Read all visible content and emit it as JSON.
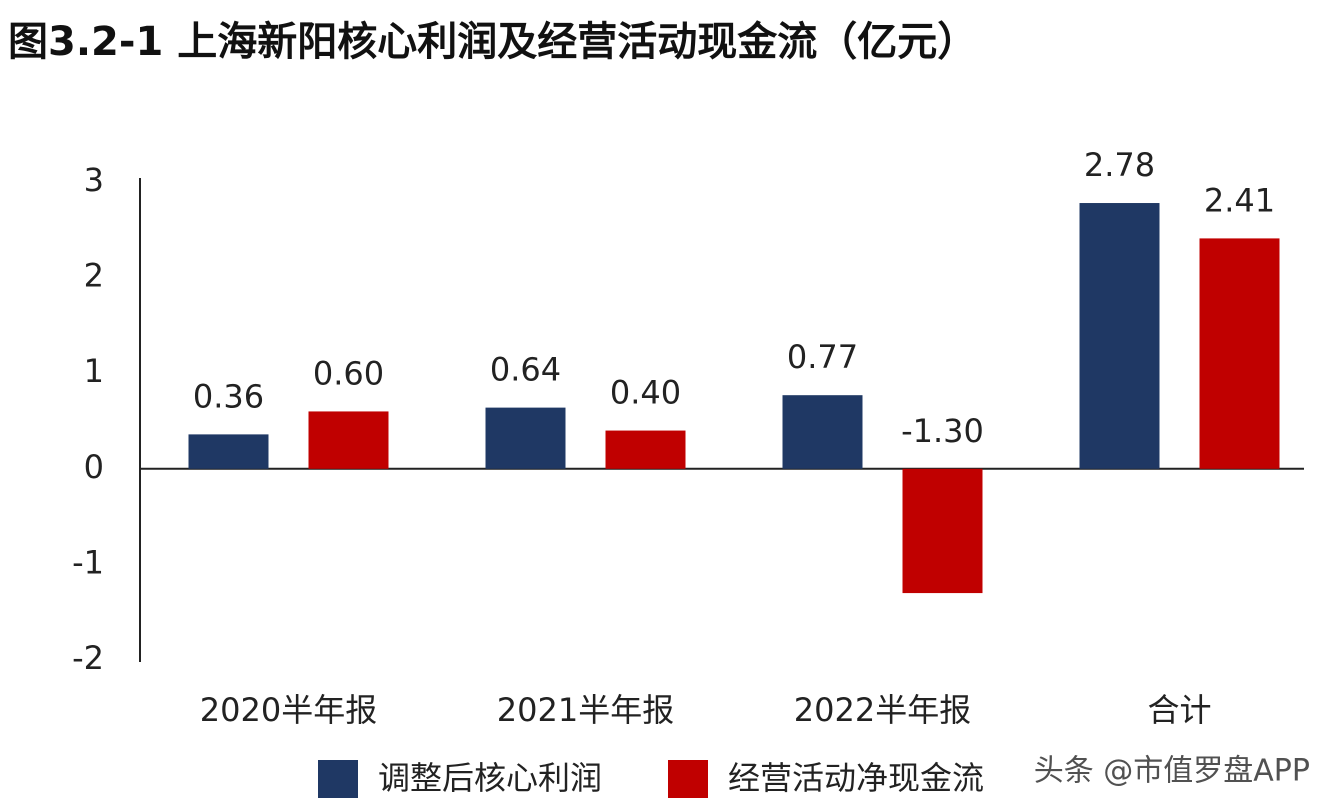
{
  "chart_data": {
    "type": "bar",
    "title": "图3.2-1 上海新阳核心利润及经营活动现金流（亿元）",
    "categories": [
      "2020半年报",
      "2021半年报",
      "2022半年报",
      "合计"
    ],
    "series": [
      {
        "name": "调整后核心利润",
        "color": "#1f3864",
        "values": [
          0.36,
          0.64,
          0.77,
          2.78
        ],
        "value_labels": [
          "0.36",
          "0.64",
          "0.77",
          "2.78"
        ]
      },
      {
        "name": "经营活动净现金流",
        "color": "#c00000",
        "values": [
          0.6,
          0.4,
          -1.3,
          2.41
        ],
        "value_labels": [
          "0.60",
          "0.40",
          "-1.30",
          "2.41"
        ]
      }
    ],
    "ylim": [
      -2,
      3
    ],
    "yticks": [
      -2,
      -1,
      0,
      1,
      2,
      3
    ],
    "grid": false,
    "legend": "bottom",
    "watermark": "头条 @市值罗盘APP"
  }
}
